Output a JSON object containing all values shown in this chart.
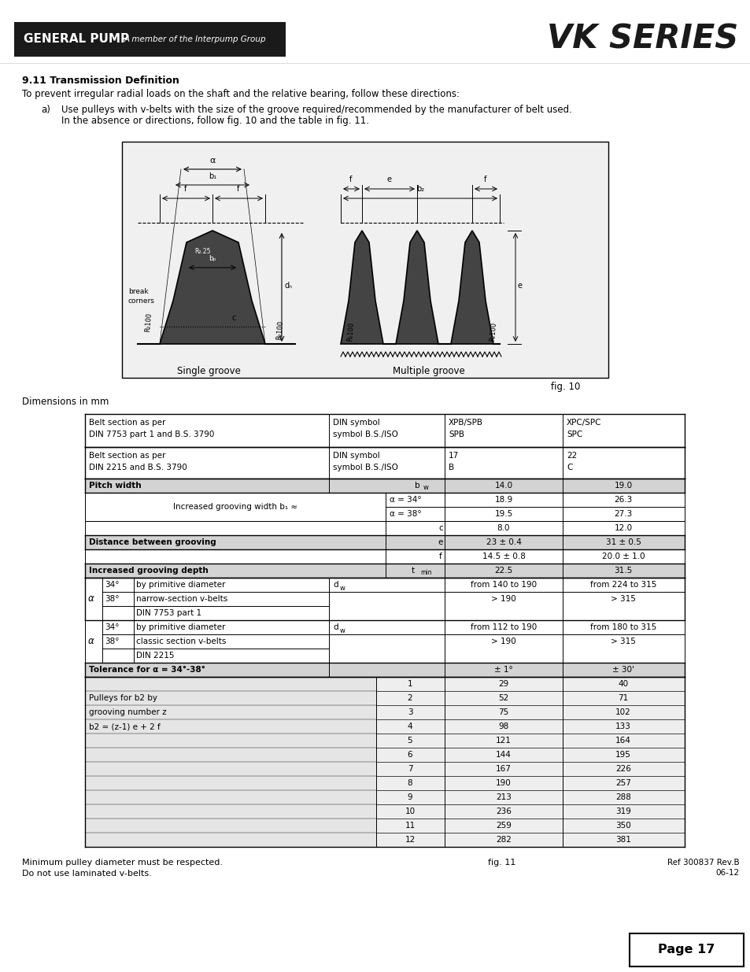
{
  "page_title": "VK SERIES",
  "header_left": "GENERAL PUMP",
  "header_subtitle": "A member of the Interpump Group",
  "section_title": "9.11 Transmission Definition",
  "section_intro": "To prevent irregular radial loads on the shaft and the relative bearing, follow these directions:",
  "bullet_a_1": "Use pulleys with v-belts with the size of the groove required/recommended by the manufacturer of belt used.",
  "bullet_a_2": "In the absence or directions, follow fig. 10 and the table in fig. 11.",
  "fig10_caption": "fig. 10",
  "fig11_caption": "fig. 11",
  "dimensions_label": "Dimensions in mm",
  "footer_note1": "Minimum pulley diameter must be respected.",
  "footer_note2": "Do not use laminated v-belts.",
  "ref_text": "Ref 300837 Rev.B",
  "date_text": "06-12",
  "page_num": "Page 17",
  "bg_color": "#ffffff",
  "header_bg": "#1a1a1a",
  "shaded_row_color": "#d3d3d3",
  "table_border_color": "#000000",
  "pulley_rows": [
    [
      1,
      29,
      40
    ],
    [
      2,
      52,
      71
    ],
    [
      3,
      75,
      102
    ],
    [
      4,
      98,
      133
    ],
    [
      5,
      121,
      164
    ],
    [
      6,
      144,
      195
    ],
    [
      7,
      167,
      226
    ],
    [
      8,
      190,
      257
    ],
    [
      9,
      213,
      288
    ],
    [
      10,
      236,
      319
    ],
    [
      11,
      259,
      350
    ],
    [
      12,
      282,
      381
    ]
  ]
}
